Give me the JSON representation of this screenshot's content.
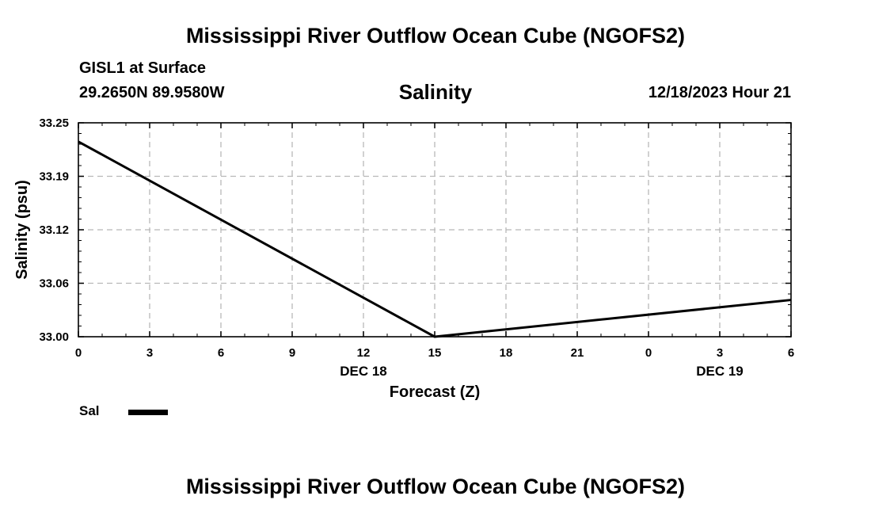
{
  "header": {
    "title": "Mississippi River Outflow Ocean Cube (NGOFS2)",
    "station": "GISL1 at Surface",
    "coords": "29.2650N  89.9580W",
    "variable": "Salinity",
    "datetime": "12/18/2023 Hour 21"
  },
  "footer": {
    "title": "Mississippi River Outflow Ocean Cube (NGOFS2)"
  },
  "legend": {
    "label": "Sal",
    "color": "#000000"
  },
  "chart_data": {
    "type": "line",
    "title": "Salinity",
    "xlabel": "Forecast (Z)",
    "ylabel": "Salinity (psu)",
    "x_tick_labels": [
      "0",
      "3",
      "6",
      "9",
      "12",
      "15",
      "18",
      "21",
      "0",
      "3",
      "6"
    ],
    "x_date_labels": [
      {
        "label": "DEC 18",
        "at_hour": 12
      },
      {
        "label": "DEC 19",
        "at_hour": 27
      }
    ],
    "y_tick_labels": [
      "33.00",
      "33.06",
      "33.12",
      "33.19",
      "33.25"
    ],
    "ylim": [
      33.0,
      33.25
    ],
    "xlim": [
      0,
      30
    ],
    "grid": true,
    "legend_position": "bottom-left",
    "series": [
      {
        "name": "Sal",
        "color": "#000000",
        "x": [
          0,
          15,
          30
        ],
        "y": [
          33.228,
          33.0,
          33.043
        ]
      }
    ]
  }
}
